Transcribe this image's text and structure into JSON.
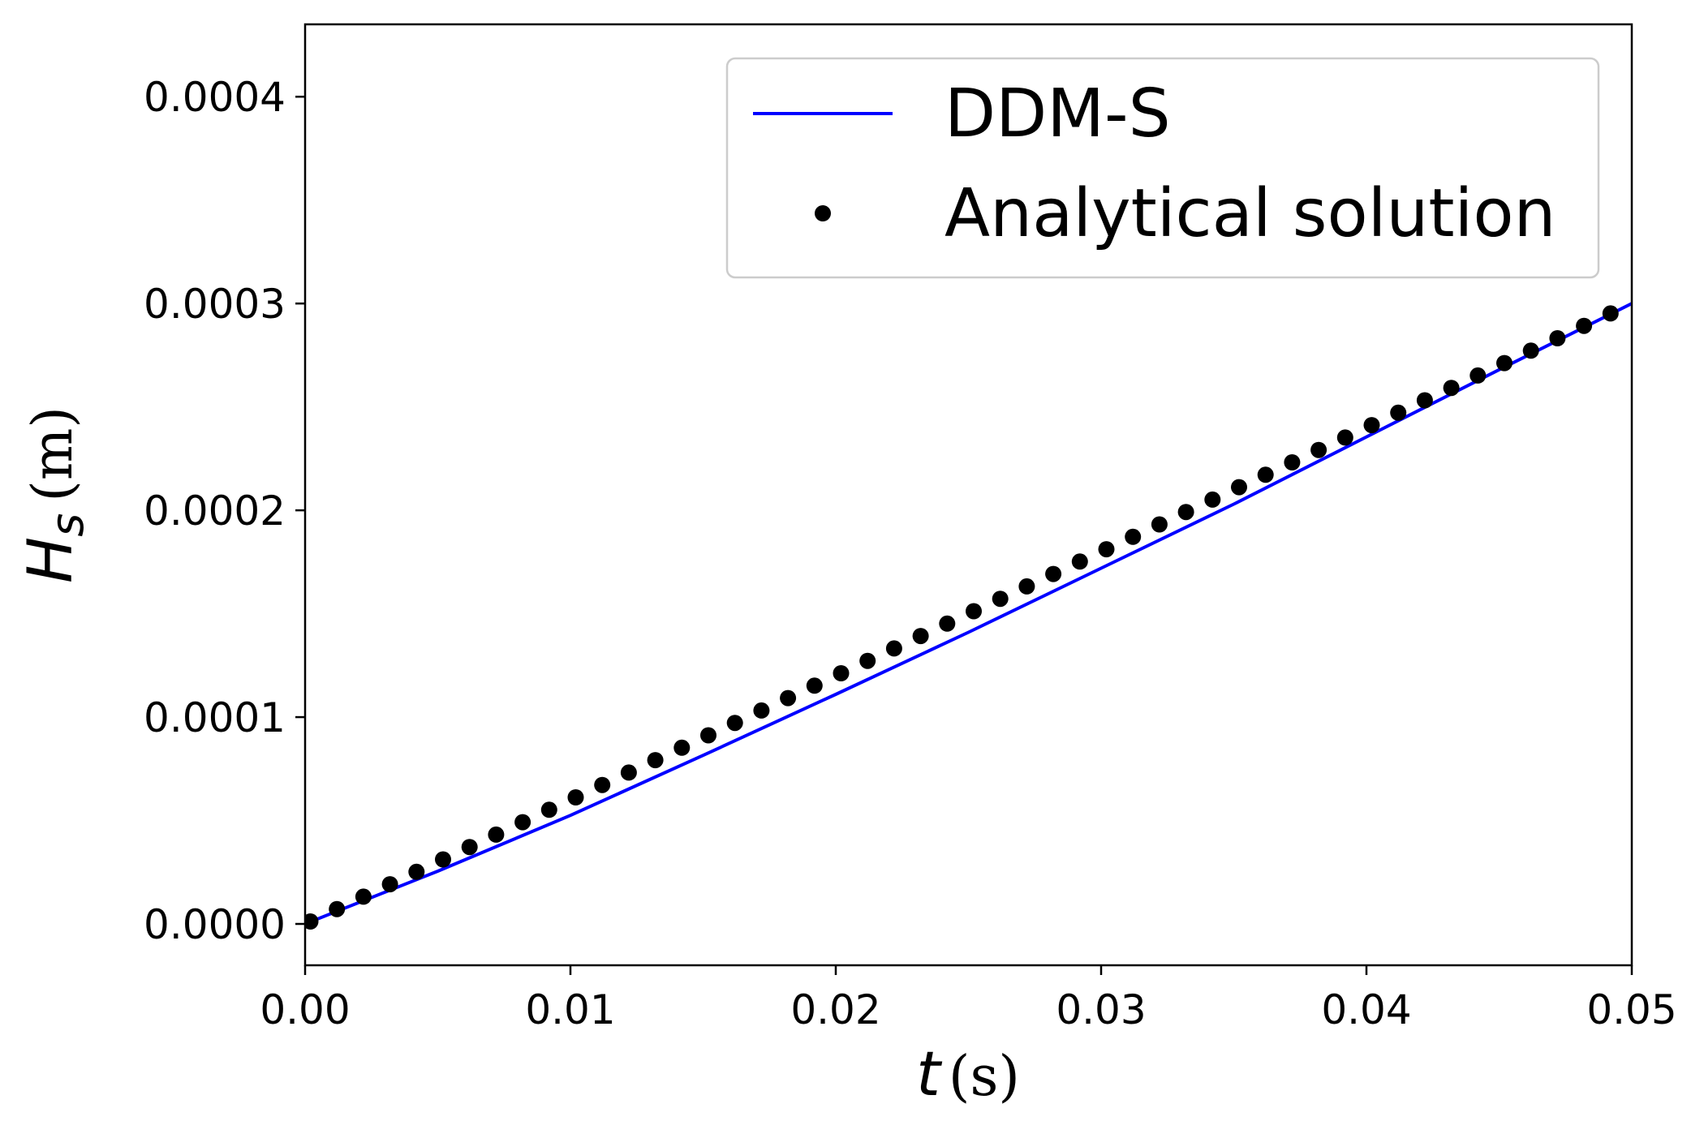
{
  "chart_data": {
    "type": "line",
    "xlabel": {
      "symbol": "t",
      "unit": "(s)"
    },
    "ylabel": {
      "symbol": "H",
      "subscript": "s",
      "unit": "(m)"
    },
    "xlim": [
      0.0,
      0.05
    ],
    "ylim": [
      -2e-05,
      0.000435
    ],
    "x_ticks": [
      0.0,
      0.01,
      0.02,
      0.03,
      0.04,
      0.05
    ],
    "x_tick_labels": [
      "0.00",
      "0.01",
      "0.02",
      "0.03",
      "0.04",
      "0.05"
    ],
    "y_ticks": [
      0.0,
      0.0001,
      0.0002,
      0.0003,
      0.0004
    ],
    "y_tick_labels": [
      "0.0000",
      "0.0001",
      "0.0002",
      "0.0003",
      "0.0004"
    ],
    "grid": false,
    "legend_position": "top-right",
    "series": [
      {
        "name": "DDM-S",
        "style": "line",
        "color": "#0000ff",
        "x": [
          0.0,
          0.005,
          0.01,
          0.015,
          0.02,
          0.025,
          0.03,
          0.035,
          0.04,
          0.045,
          0.05
        ],
        "y": [
          0.0,
          2.55e-05,
          5.25e-05,
          8.15e-05,
          0.000111,
          0.000141,
          0.000172,
          0.000203,
          0.0002355,
          0.000268,
          0.0003
        ]
      },
      {
        "name": "Analytical solution",
        "style": "markers",
        "color": "#000000",
        "x": [
          0.0002,
          0.0012,
          0.0022,
          0.0032,
          0.0042,
          0.0052,
          0.0062,
          0.0072,
          0.0082,
          0.0092,
          0.0102,
          0.0112,
          0.0122,
          0.0132,
          0.0142,
          0.0152,
          0.0162,
          0.0172,
          0.0182,
          0.0192,
          0.0202,
          0.0212,
          0.0222,
          0.0232,
          0.0242,
          0.0252,
          0.0262,
          0.0272,
          0.0282,
          0.0292,
          0.0302,
          0.0312,
          0.0322,
          0.0332,
          0.0342,
          0.0352,
          0.0362,
          0.0372,
          0.0382,
          0.0392,
          0.0402,
          0.0412,
          0.0422,
          0.0432,
          0.0442,
          0.0452,
          0.0462,
          0.0472,
          0.0482,
          0.0492
        ],
        "y": [
          1.2e-06,
          7.2e-06,
          1.32e-05,
          1.92e-05,
          2.52e-05,
          3.12e-05,
          3.72e-05,
          4.32e-05,
          4.92e-05,
          5.52e-05,
          6.12e-05,
          6.72e-05,
          7.32e-05,
          7.92e-05,
          8.52e-05,
          9.12e-05,
          9.72e-05,
          0.0001032,
          0.0001092,
          0.0001152,
          0.0001212,
          0.0001272,
          0.0001332,
          0.0001392,
          0.0001452,
          0.0001512,
          0.0001572,
          0.0001632,
          0.0001692,
          0.0001752,
          0.0001812,
          0.0001872,
          0.0001932,
          0.0001992,
          0.0002052,
          0.0002112,
          0.0002172,
          0.0002232,
          0.0002292,
          0.0002352,
          0.0002412,
          0.0002472,
          0.0002532,
          0.0002592,
          0.0002652,
          0.0002712,
          0.0002772,
          0.0002832,
          0.0002892,
          0.0002952
        ]
      }
    ]
  }
}
